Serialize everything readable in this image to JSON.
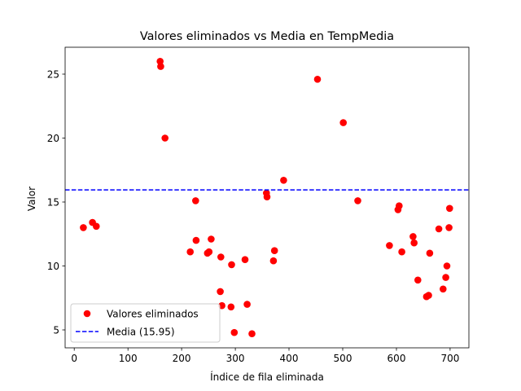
{
  "chart_data": {
    "type": "scatter",
    "title": "Valores eliminados vs Media en TempMedia",
    "xlabel": "Índice de fila eliminada",
    "ylabel": "Valor",
    "xlim": [
      -17,
      735
    ],
    "ylim": [
      3.6,
      27.1
    ],
    "xticks": [
      0,
      100,
      200,
      300,
      400,
      500,
      600,
      700
    ],
    "yticks": [
      5,
      10,
      15,
      20,
      25
    ],
    "grid": false,
    "legend_position": "lower-left",
    "series": [
      {
        "name": "Valores eliminados",
        "kind": "scatter",
        "color": "#ff0000",
        "points": [
          [
            17,
            13.0
          ],
          [
            34,
            13.4
          ],
          [
            41,
            13.1
          ],
          [
            160,
            26.0
          ],
          [
            161,
            25.6
          ],
          [
            169,
            20.0
          ],
          [
            216,
            11.1
          ],
          [
            226,
            15.1
          ],
          [
            227,
            12.0
          ],
          [
            248,
            11.0
          ],
          [
            251,
            11.1
          ],
          [
            255,
            12.1
          ],
          [
            272,
            8.0
          ],
          [
            273,
            10.7
          ],
          [
            275,
            6.9
          ],
          [
            292,
            6.8
          ],
          [
            293,
            10.1
          ],
          [
            298,
            4.8
          ],
          [
            318,
            10.5
          ],
          [
            322,
            7.0
          ],
          [
            331,
            4.7
          ],
          [
            358,
            15.7
          ],
          [
            359,
            15.4
          ],
          [
            371,
            10.4
          ],
          [
            373,
            11.2
          ],
          [
            390,
            16.7
          ],
          [
            453,
            24.6
          ],
          [
            501,
            21.2
          ],
          [
            528,
            15.1
          ],
          [
            587,
            11.6
          ],
          [
            603,
            14.4
          ],
          [
            605,
            14.7
          ],
          [
            610,
            11.1
          ],
          [
            631,
            12.3
          ],
          [
            633,
            11.8
          ],
          [
            640,
            8.9
          ],
          [
            656,
            7.6
          ],
          [
            660,
            7.7
          ],
          [
            662,
            11.0
          ],
          [
            679,
            12.9
          ],
          [
            687,
            8.2
          ],
          [
            692,
            9.1
          ],
          [
            694,
            10.0
          ],
          [
            698,
            13.0
          ],
          [
            699,
            14.5
          ]
        ]
      },
      {
        "name": "Media (15.95)",
        "kind": "hline",
        "color": "#0000ff",
        "value": 15.95
      }
    ]
  }
}
